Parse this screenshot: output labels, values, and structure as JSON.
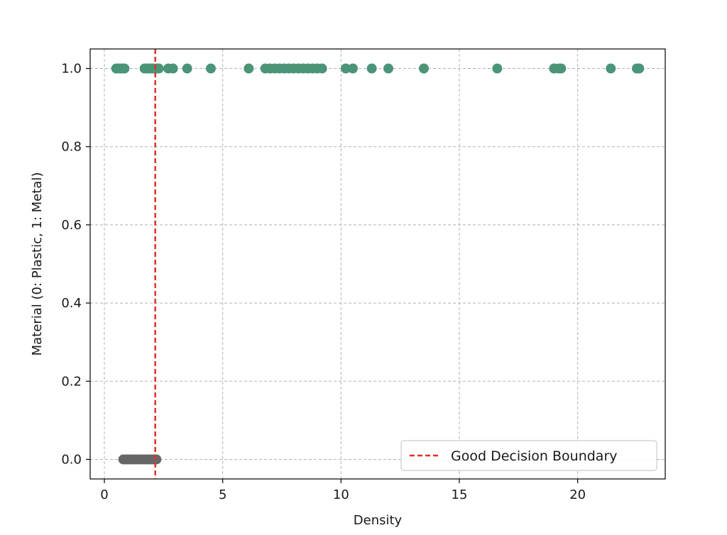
{
  "chart_data": {
    "type": "scatter",
    "xlabel": "Density",
    "ylabel": "Material (0: Plastic, 1: Metal)",
    "xlim": [
      -0.6,
      23.7
    ],
    "ylim": [
      -0.05,
      1.05
    ],
    "x_ticks": [
      0,
      5,
      10,
      15,
      20
    ],
    "x_tick_labels": [
      "0",
      "5",
      "10",
      "15",
      "20"
    ],
    "y_ticks": [
      0.0,
      0.2,
      0.4,
      0.6,
      0.8,
      1.0
    ],
    "y_tick_labels": [
      "0.0",
      "0.2",
      "0.4",
      "0.6",
      "0.8",
      "1.0"
    ],
    "grid": true,
    "legend_position": "lower-right",
    "colors": {
      "metal": "#4a9477",
      "plastic": "#666666",
      "boundary": "#e0312a",
      "grid": "#b0b0b0"
    },
    "series": [
      {
        "color_key": "metal",
        "y": 1.0,
        "x": [
          0.5,
          0.6,
          0.7,
          0.8,
          0.85,
          1.7,
          1.8,
          1.9,
          2.0,
          2.05,
          2.2,
          2.3,
          2.7,
          2.9,
          3.5,
          4.5,
          6.1,
          6.8,
          7.0,
          7.2,
          7.4,
          7.6,
          7.8,
          8.0,
          8.2,
          8.4,
          8.6,
          8.8,
          9.0,
          9.2,
          10.2,
          10.5,
          11.3,
          12.0,
          13.5,
          16.6,
          19.0,
          19.2,
          19.3,
          21.4,
          22.5,
          22.6
        ]
      },
      {
        "color_key": "plastic",
        "y": 0.0,
        "x": [
          0.8,
          0.9,
          1.0,
          1.1,
          1.2,
          1.3,
          1.4,
          1.5,
          1.6,
          1.7,
          1.8,
          1.9,
          2.0,
          2.1,
          2.15,
          2.2
        ]
      }
    ],
    "decision_boundary": {
      "name": "Good Decision Boundary",
      "x": 2.15,
      "style": "dashed"
    }
  }
}
